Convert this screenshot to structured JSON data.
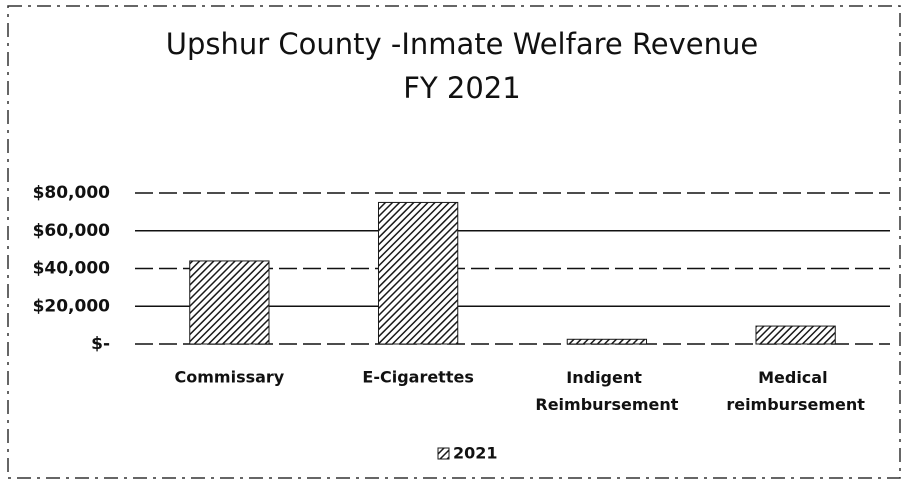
{
  "chart_data": {
    "type": "bar",
    "title": "Upshur County -Inmate Welfare Revenue",
    "subtitle": "FY 2021",
    "categories": [
      "Commissary",
      "E-Cigarettes",
      "Indigent Reimbursement",
      "Medical reimbursement"
    ],
    "series": [
      {
        "name": "2021",
        "color": "#1a1a1a",
        "values": [
          44000,
          75000,
          2500,
          9500
        ]
      }
    ],
    "ylim": [
      0,
      80000
    ],
    "yticks": [
      {
        "value": 0,
        "label": "$-"
      },
      {
        "value": 20000,
        "label": "$20,000"
      },
      {
        "value": 40000,
        "label": "$40,000"
      },
      {
        "value": 60000,
        "label": "$60,000"
      },
      {
        "value": 80000,
        "label": "$80,000"
      }
    ],
    "grid": true,
    "legend": "bottom"
  }
}
